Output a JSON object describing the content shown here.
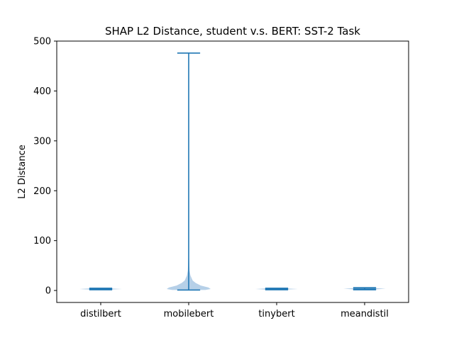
{
  "chart_data": {
    "type": "violin",
    "title": "SHAP L2 Distance, student v.s. BERT: SST-2 Task",
    "xlabel": "",
    "ylabel": "L2 Distance",
    "ylim": [
      -24,
      500
    ],
    "yticks": [
      0,
      100,
      200,
      300,
      400,
      500
    ],
    "categories": [
      "distilbert",
      "mobilebert",
      "tinybert",
      "meandistil"
    ],
    "series": [
      {
        "category": "distilbert",
        "min": 1.5,
        "max": 4.5,
        "median_band": [
          1.5,
          4.5
        ],
        "density_half_width": 0.42
      },
      {
        "category": "mobilebert",
        "min": 1.0,
        "max": 476.0,
        "tail_start": 40,
        "body_top": 20,
        "density_half_width": 0.42
      },
      {
        "category": "tinybert",
        "min": 1.5,
        "max": 4.5,
        "median_band": [
          1.5,
          4.5
        ],
        "density_half_width": 0.42
      },
      {
        "category": "meandistil",
        "min": 1.5,
        "max": 5.5,
        "median_band": [
          2.5,
          4.0
        ],
        "density_half_width": 0.42
      }
    ],
    "colors": {
      "line": "#1f77b4",
      "body": "#a9c8e4"
    }
  }
}
